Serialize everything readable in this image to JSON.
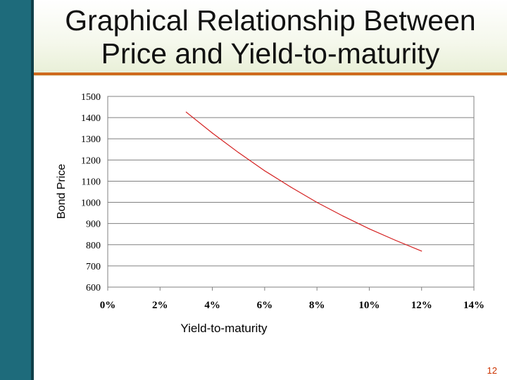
{
  "title": {
    "line1": "Graphical Relationship Between",
    "line2": "Price and Yield-to-maturity"
  },
  "slide_number": "12",
  "colors": {
    "left_bar": "#1e6b7b",
    "accent_rule": "#cf6a1e",
    "curve": "#d42020",
    "slide_number": "#cc3300"
  },
  "chart_data": {
    "type": "line",
    "title": "",
    "xlabel": "Yield-to-maturity",
    "ylabel": "Bond Price",
    "xlim": [
      0,
      0.14
    ],
    "ylim": [
      600,
      1500
    ],
    "x_ticks": [
      0,
      0.02,
      0.04,
      0.06,
      0.08,
      0.1,
      0.12,
      0.14
    ],
    "x_tick_labels": [
      "0%",
      "2%",
      "4%",
      "6%",
      "8%",
      "10%",
      "12%",
      "14%"
    ],
    "y_ticks": [
      600,
      700,
      800,
      900,
      1000,
      1100,
      1200,
      1300,
      1400,
      1500
    ],
    "y_tick_labels": [
      "600",
      "700",
      "800",
      "900",
      "1000",
      "1100",
      "1200",
      "1300",
      "1400",
      "1500"
    ],
    "grid": "horizontal",
    "legend": "none",
    "series": [
      {
        "x": [
          0.03,
          0.04,
          0.05,
          0.06,
          0.07,
          0.08,
          0.09,
          0.1,
          0.11,
          0.12
        ],
        "values": [
          1426,
          1327,
          1235,
          1149,
          1072,
          1000,
          935,
          875,
          821,
          770
        ]
      }
    ]
  }
}
